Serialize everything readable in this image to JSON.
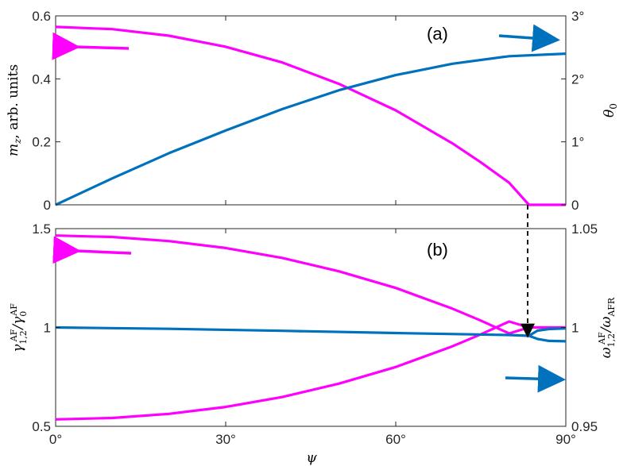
{
  "colors": {
    "magenta": "#ff00ff",
    "blue": "#0072bd",
    "axis": "#262626"
  },
  "chart_data": [
    {
      "type": "line",
      "panel_label": "(a)",
      "xlim": [
        0,
        90
      ],
      "x_ticks": [
        "0°",
        "30°",
        "60°",
        "90°"
      ],
      "ylabel_left": "mz, arb. units",
      "ylim_left": [
        0,
        0.6
      ],
      "yticks_left": [
        "0",
        "0.2",
        "0.4",
        "0.6"
      ],
      "ylabel_right": "θ0",
      "ylim_right": [
        0,
        3
      ],
      "yticks_right": [
        "0",
        "1°",
        "2°",
        "3°"
      ],
      "grid": false,
      "series": [
        {
          "axis": "left",
          "color": "magenta",
          "x": [
            0,
            10,
            20,
            30,
            40,
            50,
            60,
            70,
            75,
            80,
            83.5,
            86,
            90
          ],
          "y": [
            0.565,
            0.558,
            0.537,
            0.502,
            0.452,
            0.384,
            0.3,
            0.195,
            0.135,
            0.07,
            0.0,
            0.0,
            0.0
          ]
        },
        {
          "axis": "right",
          "color": "blue",
          "x": [
            0,
            10,
            20,
            30,
            40,
            50,
            60,
            70,
            80,
            90
          ],
          "y": [
            0.0,
            0.42,
            0.82,
            1.18,
            1.52,
            1.82,
            2.06,
            2.24,
            2.36,
            2.4
          ]
        }
      ],
      "annotations": [
        {
          "text": "arrow",
          "direction": "left",
          "color": "magenta",
          "points_to": "left axis"
        },
        {
          "text": "arrow",
          "direction": "right",
          "color": "blue",
          "points_to": "right axis"
        }
      ]
    },
    {
      "type": "line",
      "panel_label": "(b)",
      "xlim": [
        0,
        90
      ],
      "x_ticks": [
        "0°",
        "30°",
        "60°",
        "90°"
      ],
      "xlabel": "ψ",
      "ylabel_left": "γAF1,2/γAF0",
      "ylim_left": [
        0.5,
        1.5
      ],
      "yticks_left": [
        "0.5",
        "1",
        "1.5"
      ],
      "ylabel_right": "ωAF1,2/ωAFR",
      "ylim_right": [
        0.95,
        1.05
      ],
      "yticks_right": [
        "0.95",
        "1",
        "1.05"
      ],
      "grid": false,
      "series": [
        {
          "axis": "left",
          "color": "magenta",
          "x": [
            0,
            10,
            20,
            30,
            40,
            50,
            60,
            70,
            75,
            80,
            83.5
          ],
          "y": [
            1.465,
            1.458,
            1.437,
            1.402,
            1.352,
            1.284,
            1.2,
            1.095,
            1.035,
            0.97,
            1.0
          ]
        },
        {
          "axis": "left",
          "color": "magenta",
          "x": [
            0,
            10,
            20,
            30,
            40,
            50,
            60,
            70,
            75,
            80,
            83.5
          ],
          "y": [
            0.535,
            0.542,
            0.563,
            0.598,
            0.648,
            0.716,
            0.8,
            0.905,
            0.965,
            1.03,
            1.0
          ]
        },
        {
          "axis": "left",
          "color": "magenta",
          "x": [
            83.5,
            90
          ],
          "y": [
            1.0,
            1.0
          ]
        },
        {
          "axis": "right",
          "color": "blue",
          "x": [
            0,
            20,
            40,
            60,
            80,
            83.5
          ],
          "y": [
            1.0,
            0.9993,
            0.9983,
            0.9972,
            0.9962,
            0.9958
          ]
        },
        {
          "axis": "right",
          "color": "blue",
          "x": [
            83.5,
            85,
            87,
            90
          ],
          "y": [
            0.9958,
            0.9984,
            0.9992,
            0.9995
          ]
        },
        {
          "axis": "right",
          "color": "blue",
          "x": [
            83.5,
            85,
            87,
            90
          ],
          "y": [
            0.9958,
            0.9942,
            0.9932,
            0.993
          ]
        }
      ],
      "annotations": [
        {
          "text": "arrow",
          "direction": "left",
          "color": "magenta",
          "points_to": "left axis"
        },
        {
          "text": "arrow",
          "direction": "right",
          "color": "blue",
          "points_to": "right axis"
        }
      ]
    }
  ],
  "transition_marker": {
    "x": 83.5,
    "style": "dashed arrow from panel (a) to panel (b)"
  }
}
